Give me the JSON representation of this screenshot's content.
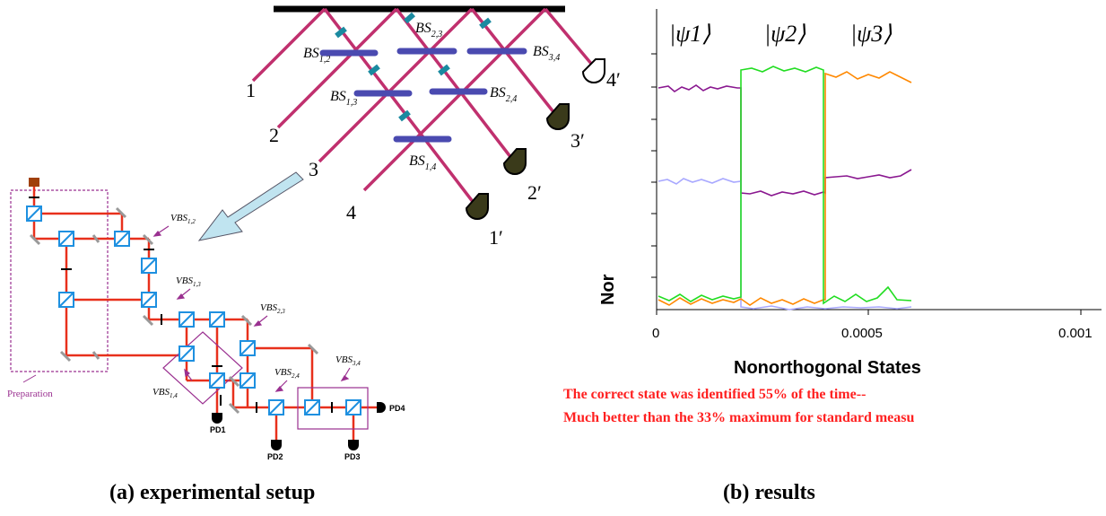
{
  "setup": {
    "inputs": [
      "1",
      "2",
      "3",
      "4"
    ],
    "outputs": [
      "4′",
      "3′",
      "2′",
      "1′"
    ],
    "bs": [
      {
        "main": "BS",
        "sub": "1,2"
      },
      {
        "main": "BS",
        "sub": "2,3"
      },
      {
        "main": "BS",
        "sub": "3,4"
      },
      {
        "main": "BS",
        "sub": "1,3"
      },
      {
        "main": "BS",
        "sub": "2,4"
      },
      {
        "main": "BS",
        "sub": "1,4"
      }
    ],
    "vbs": [
      {
        "main": "VBS",
        "sub": "1,2"
      },
      {
        "main": "VBS",
        "sub": "1,3"
      },
      {
        "main": "VBS",
        "sub": "2,3"
      },
      {
        "main": "VBS",
        "sub": "1,4"
      },
      {
        "main": "VBS",
        "sub": "2,4"
      },
      {
        "main": "VBS",
        "sub": "3,4"
      }
    ],
    "preparation_label": "Preparation",
    "detectors": [
      "PD1",
      "PD2",
      "PD3",
      "PD4"
    ],
    "caption": "(a) experimental setup"
  },
  "results": {
    "state_labels": [
      "|ψ1⟩",
      "|ψ2⟩",
      "|ψ3⟩"
    ],
    "xlabel": "Nonorthogonal States",
    "ylabel": "Nor",
    "xticks": [
      "0",
      "0.0005",
      "0.001"
    ],
    "note_line1": "The correct state was identified 55% of the time--",
    "note_line2": "Much better than the 33% maximum for standard measu",
    "caption": "(b) results"
  },
  "colors": {
    "beam_top": "#c0306e",
    "beam_setup": "#e8301c",
    "bs_plate": "#4a4ab0",
    "bs_plate_small": "#30c0d0",
    "cube": "#1e90e0",
    "prep": "#9a3090",
    "green": "#22dd22",
    "orange": "#ff8800",
    "purple": "#8a1890",
    "lavender": "#a8a8ff",
    "note": "#ff2020"
  }
}
